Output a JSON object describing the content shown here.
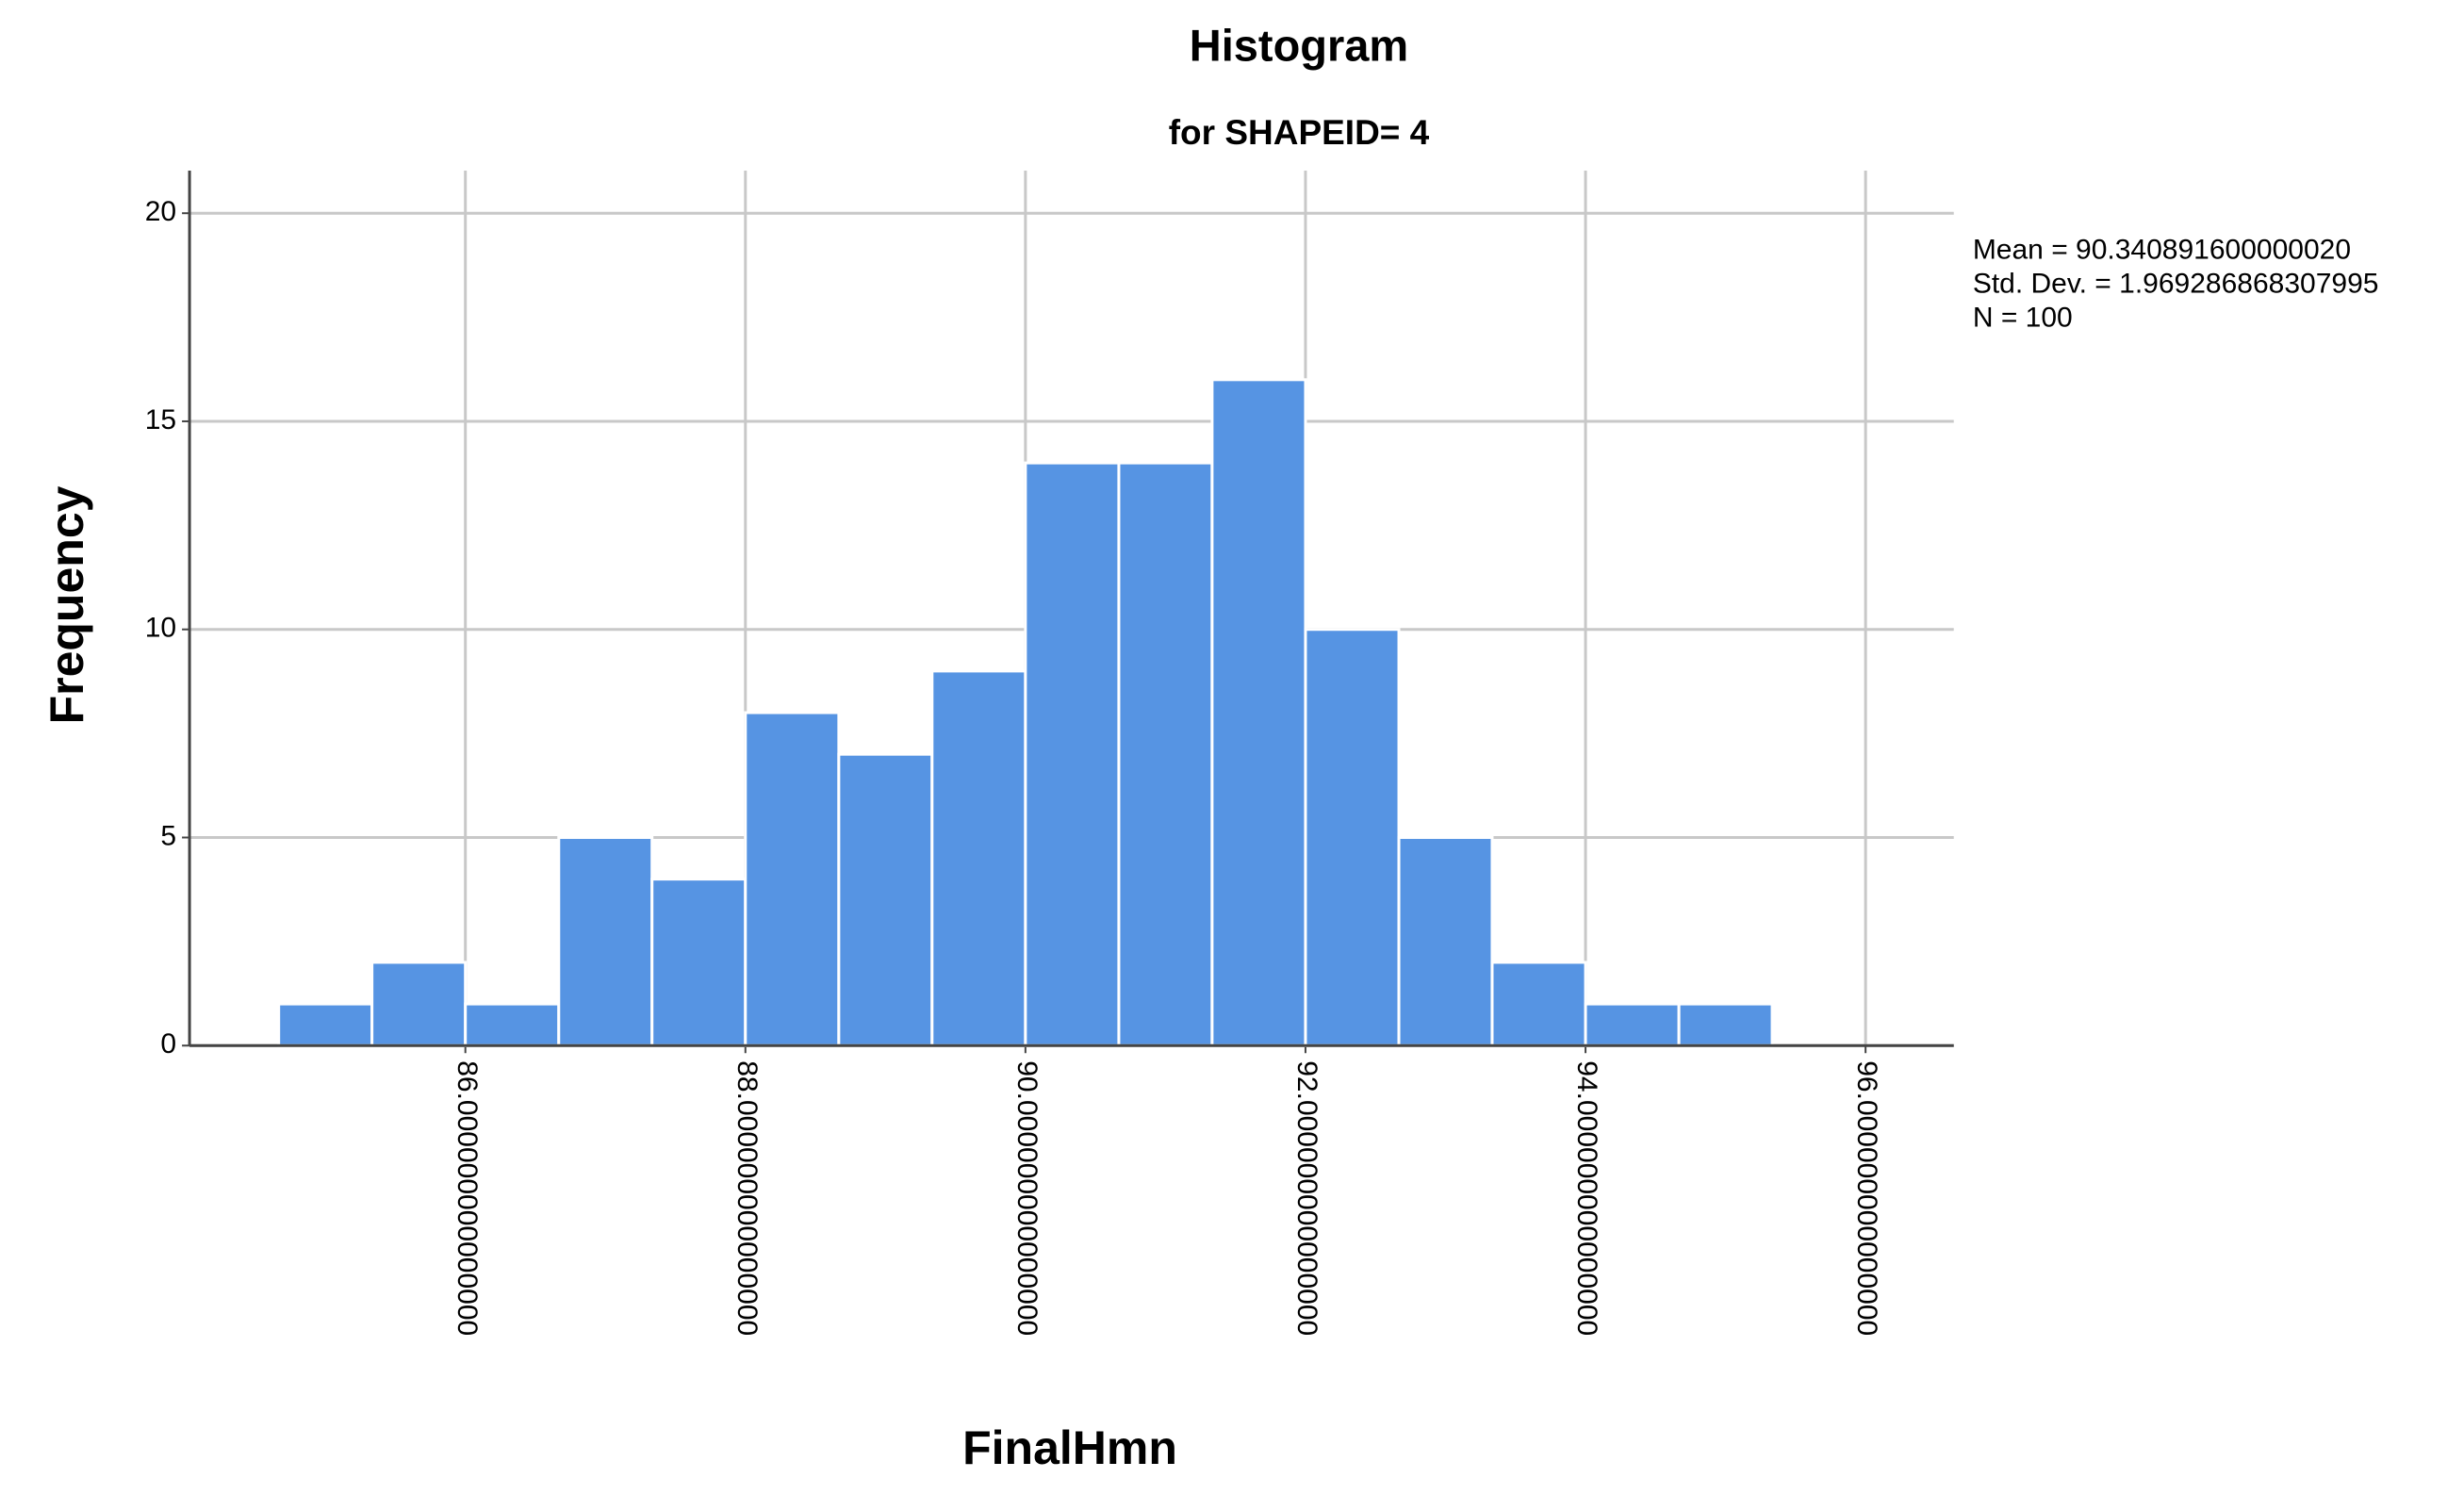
{
  "chart_data": {
    "type": "histogram",
    "title": "Histogram",
    "subtitle": "for SHAPEID= 4",
    "x_label": "FinalHmn",
    "y_label": "Frequency",
    "annotations": [
      "Mean = 90.340891600000020",
      "Std. Dev. = 1.969286868307995",
      "N = 100"
    ],
    "bins": [
      84.667,
      85.333,
      86,
      86.667,
      87.333,
      88,
      88.667,
      89.333,
      90,
      90.667,
      91.333,
      92,
      92.667,
      93.333,
      94,
      94.667,
      95.333
    ],
    "values": [
      1,
      2,
      1,
      5,
      4,
      8,
      7,
      9,
      14,
      14,
      16,
      10,
      5,
      2,
      1,
      1
    ],
    "color": "#5694e3",
    "xlim": [
      84.03,
      96.63
    ],
    "ylim": [
      0,
      20
    ],
    "xticks": [
      {
        "value": 86,
        "label": "86.000000000000000"
      },
      {
        "value": 88,
        "label": "88.000000000000000"
      },
      {
        "value": 90,
        "label": "90.000000000000000"
      },
      {
        "value": 92,
        "label": "92.000000000000000"
      },
      {
        "value": 94,
        "label": "94.000000000000000"
      },
      {
        "value": 96,
        "label": "96.000000000000000"
      }
    ],
    "yticks": [
      0,
      5,
      10,
      15,
      20
    ],
    "grid": true
  }
}
